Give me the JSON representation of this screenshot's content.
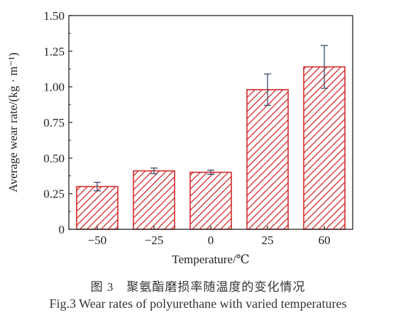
{
  "chart_data": {
    "type": "bar",
    "categories": [
      "−50",
      "−25",
      "0",
      "25",
      "60"
    ],
    "values": [
      0.3,
      0.41,
      0.4,
      0.98,
      1.14
    ],
    "errors": [
      0.03,
      0.02,
      0.015,
      0.11,
      0.15
    ],
    "xlabel": "Temperature/℃",
    "ylabel": "Average wear rate/(kg · m⁻¹)",
    "ylim": [
      0,
      1.5
    ],
    "yticks": [
      0,
      0.25,
      0.5,
      0.75,
      1.0,
      1.25,
      1.5
    ],
    "ytick_labels": [
      "0",
      "0.25",
      "0.50",
      "0.75",
      "1.00",
      "1.25",
      "1.50"
    ],
    "grid": false,
    "bar_style": "red diagonal hatch",
    "bar_color": "#d42a2a",
    "errorbar_color": "#3a4a6a"
  },
  "caption": {
    "cn": "图 3　聚氨酯磨损率随温度的变化情况",
    "en": "Fig.3 Wear rates of polyurethane with varied temperatures"
  }
}
